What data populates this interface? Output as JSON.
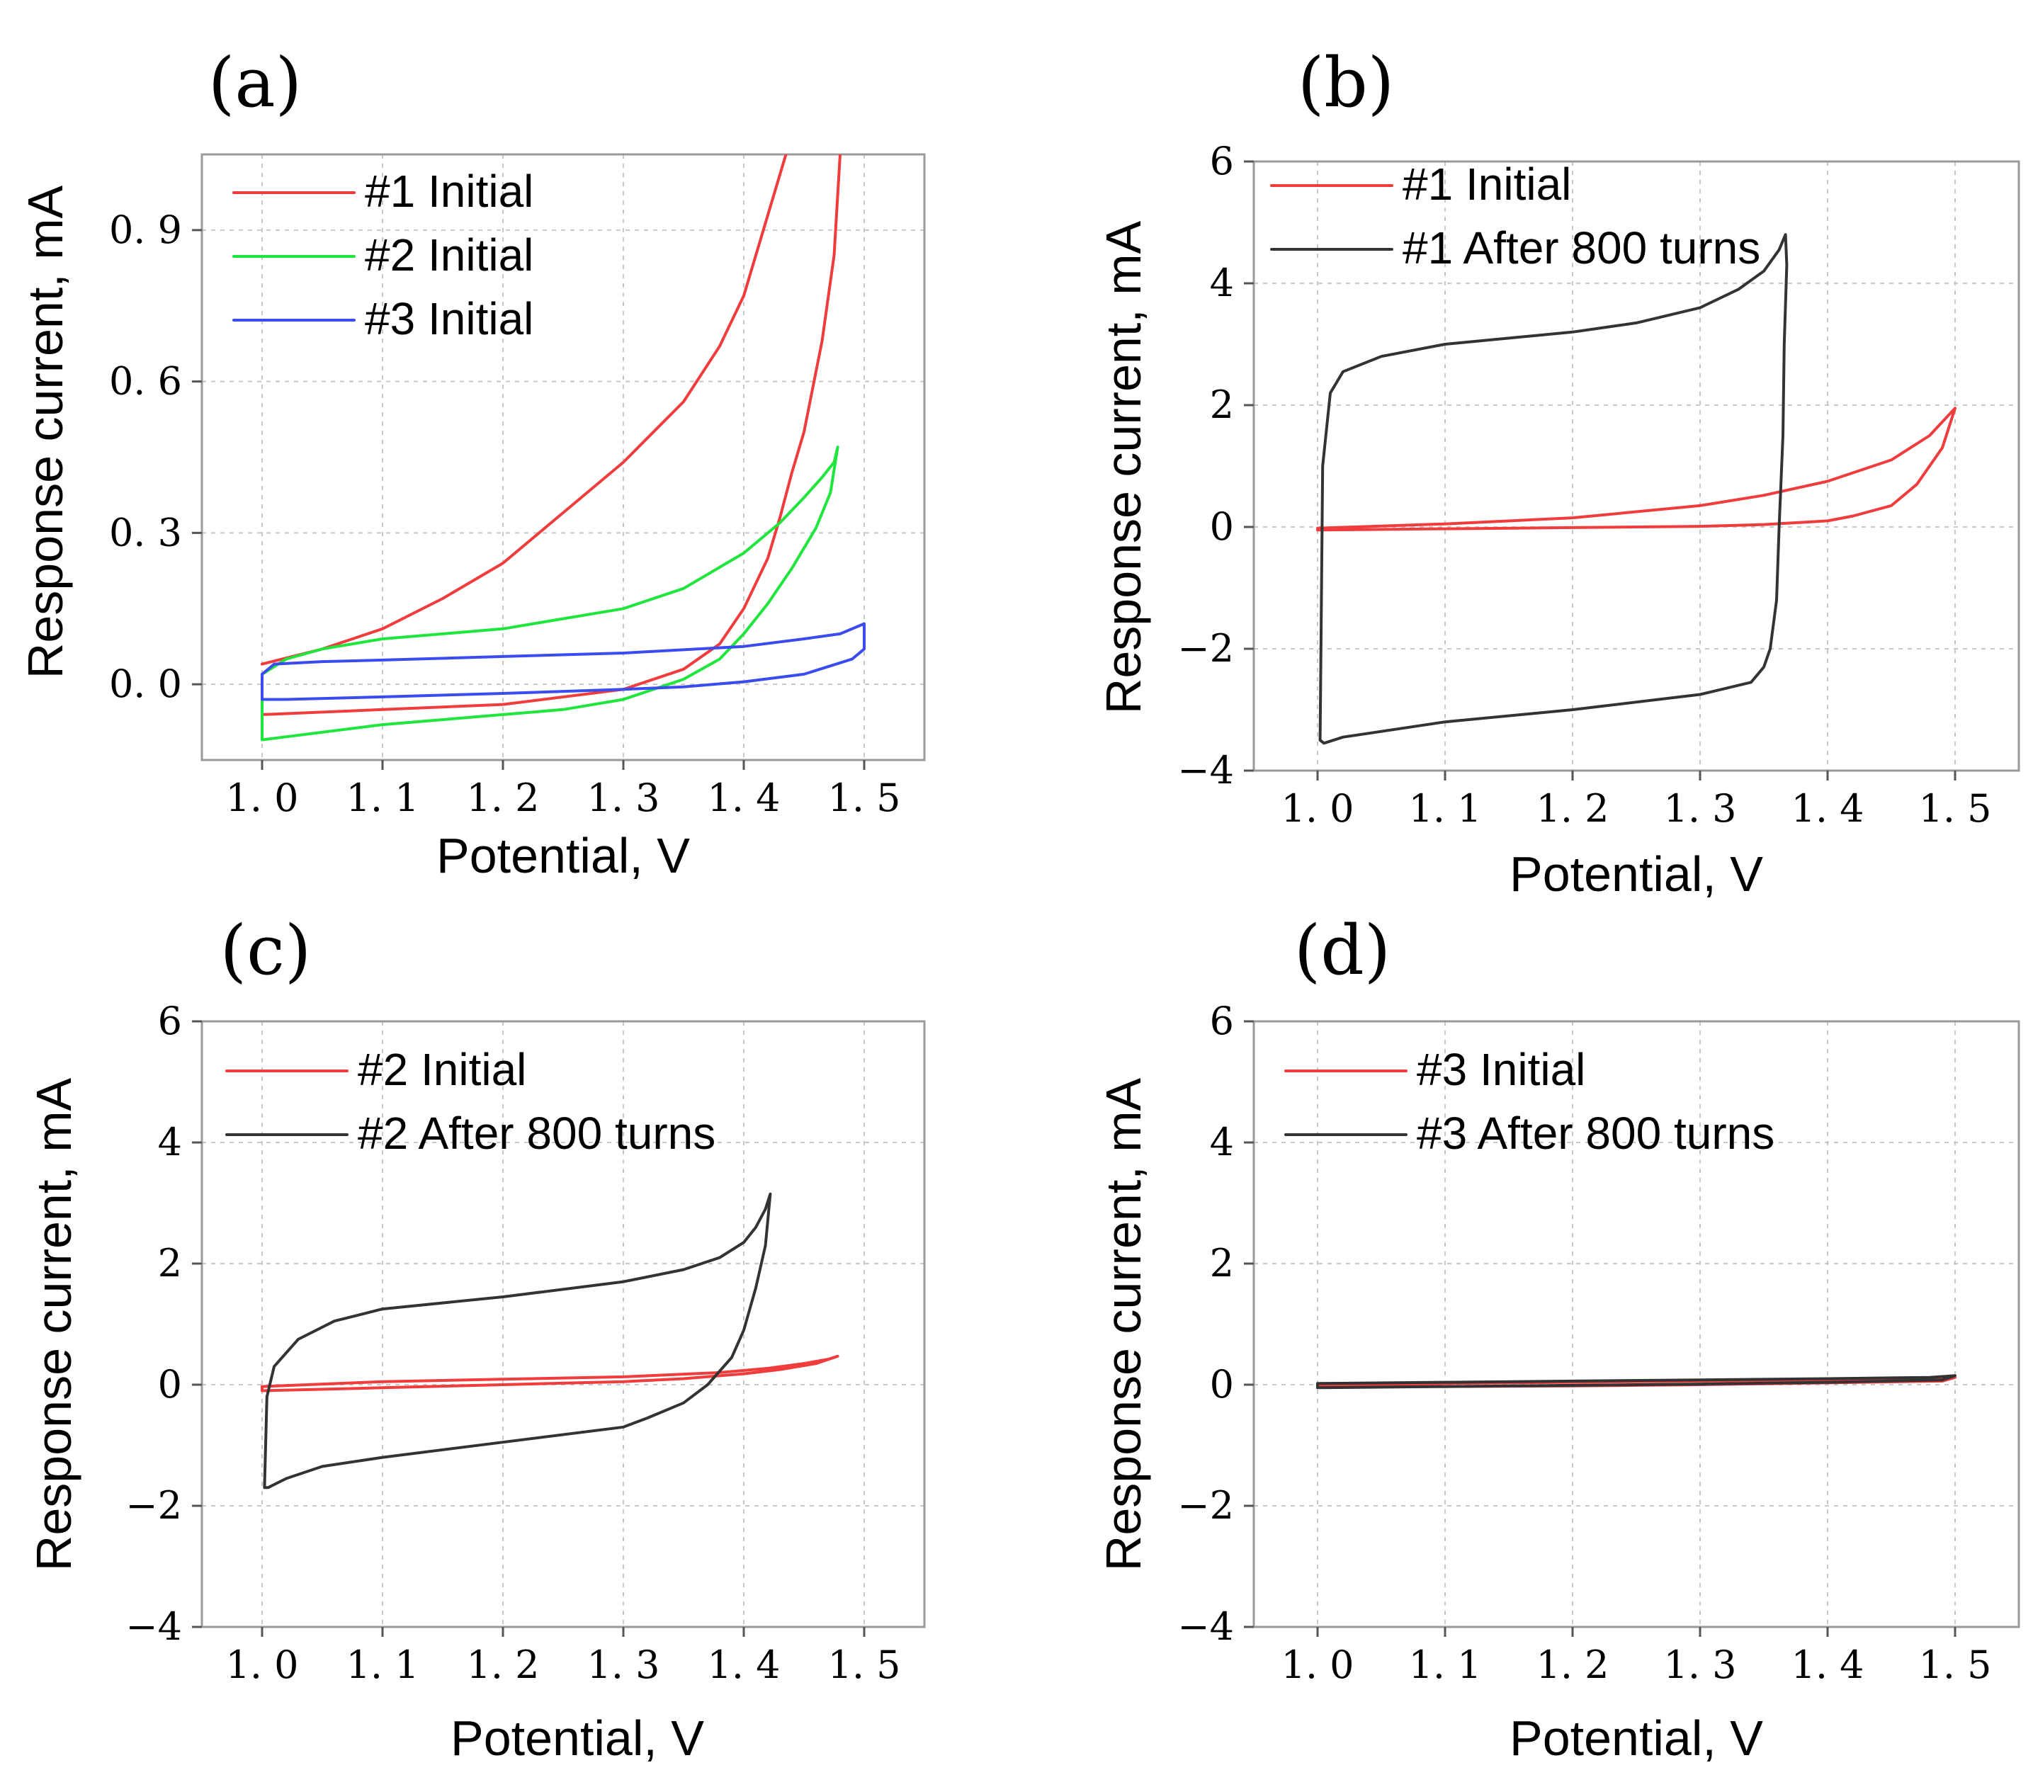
{
  "chart_data": [
    {
      "id": "a",
      "type": "line",
      "panel_label": "(a)",
      "xlabel": "Potential, V",
      "ylabel": "Response current, mA",
      "xlim": [
        0.95,
        1.55
      ],
      "ylim": [
        -0.15,
        1.05
      ],
      "xticks": [
        1.0,
        1.1,
        1.2,
        1.3,
        1.4,
        1.5
      ],
      "xtick_labels": [
        "1. 0",
        "1. 1",
        "1. 2",
        "1. 3",
        "1. 4",
        "1. 5"
      ],
      "yticks": [
        0.0,
        0.3,
        0.6,
        0.9
      ],
      "ytick_labels": [
        "0. 0",
        "0. 3",
        "0. 6",
        "0. 9"
      ],
      "grid": true,
      "legend_position": "top-left",
      "series": [
        {
          "name": "#1 Initial",
          "color": "#f03c3c",
          "x": [
            1.0,
            1.05,
            1.1,
            1.15,
            1.2,
            1.25,
            1.3,
            1.35,
            1.38,
            1.4,
            1.42,
            1.435,
            null,
            1.48,
            1.475,
            1.465,
            1.45,
            1.44,
            1.43,
            1.42,
            1.4,
            1.38,
            1.35,
            1.3,
            1.2,
            1.1,
            1.0
          ],
          "y": [
            0.04,
            0.07,
            0.11,
            0.17,
            0.24,
            0.34,
            0.44,
            0.56,
            0.67,
            0.77,
            0.93,
            1.05,
            null,
            1.05,
            0.85,
            0.68,
            0.5,
            0.42,
            0.33,
            0.25,
            0.15,
            0.08,
            0.03,
            -0.01,
            -0.04,
            -0.05,
            -0.06
          ]
        },
        {
          "name": "#2 Initial",
          "color": "#1ee63c",
          "x": [
            1.0,
            1.02,
            1.05,
            1.1,
            1.2,
            1.3,
            1.35,
            1.4,
            1.43,
            1.45,
            1.465,
            1.475,
            1.478,
            1.472,
            1.46,
            1.44,
            1.42,
            1.4,
            1.38,
            1.35,
            1.3,
            1.25,
            1.2,
            1.1,
            1.0,
            1.0
          ],
          "y": [
            0.02,
            0.05,
            0.07,
            0.09,
            0.11,
            0.15,
            0.19,
            0.26,
            0.32,
            0.37,
            0.41,
            0.44,
            0.47,
            0.38,
            0.31,
            0.23,
            0.16,
            0.1,
            0.05,
            0.01,
            -0.03,
            -0.05,
            -0.06,
            -0.08,
            -0.11,
            0.02
          ]
        },
        {
          "name": "#3 Initial",
          "color": "#3a4bf0",
          "x": [
            1.0,
            1.01,
            1.05,
            1.1,
            1.2,
            1.3,
            1.4,
            1.45,
            1.48,
            1.5,
            1.5,
            1.49,
            1.47,
            1.45,
            1.4,
            1.35,
            1.3,
            1.2,
            1.1,
            1.02,
            1.0,
            1.0
          ],
          "y": [
            0.02,
            0.04,
            0.045,
            0.048,
            0.055,
            0.062,
            0.075,
            0.09,
            0.1,
            0.12,
            0.07,
            0.05,
            0.035,
            0.02,
            0.005,
            -0.005,
            -0.01,
            -0.018,
            -0.025,
            -0.03,
            -0.03,
            0.02
          ]
        }
      ]
    },
    {
      "id": "b",
      "type": "line",
      "panel_label": "(b)",
      "xlabel": "Potential, V",
      "ylabel": "Response current, mA",
      "xlim": [
        0.95,
        1.55
      ],
      "ylim": [
        -4,
        6
      ],
      "xticks": [
        1.0,
        1.1,
        1.2,
        1.3,
        1.4,
        1.5
      ],
      "xtick_labels": [
        "1. 0",
        "1. 1",
        "1. 2",
        "1. 3",
        "1. 4",
        "1. 5"
      ],
      "yticks": [
        -4,
        -2,
        0,
        2,
        4,
        6
      ],
      "ytick_labels": [
        "−4",
        "−2",
        "0",
        "2",
        "4",
        "6"
      ],
      "grid": true,
      "legend_position": "top-left",
      "series": [
        {
          "name": "#1 Initial",
          "color": "#f03c3c",
          "x": [
            1.0,
            1.1,
            1.2,
            1.3,
            1.35,
            1.4,
            1.45,
            1.48,
            1.5,
            1.49,
            1.47,
            1.45,
            1.42,
            1.4,
            1.35,
            1.3,
            1.2,
            1.1,
            1.0
          ],
          "y": [
            -0.02,
            0.05,
            0.15,
            0.35,
            0.52,
            0.75,
            1.1,
            1.5,
            1.95,
            1.3,
            0.7,
            0.35,
            0.18,
            0.1,
            0.04,
            0.01,
            -0.01,
            -0.03,
            -0.05
          ]
        },
        {
          "name": "#1 After 800 turns",
          "color": "#333333",
          "x": [
            1.002,
            1.004,
            1.01,
            1.02,
            1.05,
            1.1,
            1.15,
            1.2,
            1.25,
            1.3,
            1.33,
            1.35,
            1.362,
            1.367,
            1.368,
            1.366,
            1.365,
            1.362,
            1.36,
            1.355,
            1.35,
            1.34,
            1.3,
            1.2,
            1.1,
            1.02,
            1.005,
            1.002
          ],
          "y": [
            -3.5,
            1.0,
            2.2,
            2.55,
            2.8,
            3.0,
            3.1,
            3.2,
            3.35,
            3.6,
            3.9,
            4.2,
            4.55,
            4.8,
            4.3,
            3.0,
            1.5,
            0.0,
            -1.2,
            -2.0,
            -2.3,
            -2.55,
            -2.75,
            -3.0,
            -3.2,
            -3.45,
            -3.55,
            -3.5
          ]
        }
      ]
    },
    {
      "id": "c",
      "type": "line",
      "panel_label": "(c)",
      "xlabel": "Potential, V",
      "ylabel": "Response current, mA",
      "xlim": [
        0.95,
        1.55
      ],
      "ylim": [
        -4,
        6
      ],
      "xticks": [
        1.0,
        1.1,
        1.2,
        1.3,
        1.4,
        1.5
      ],
      "xtick_labels": [
        "1. 0",
        "1. 1",
        "1. 2",
        "1. 3",
        "1. 4",
        "1. 5"
      ],
      "yticks": [
        -4,
        -2,
        0,
        2,
        4,
        6
      ],
      "ytick_labels": [
        "−4",
        "−2",
        "0",
        "2",
        "4",
        "6"
      ],
      "grid": true,
      "legend_position": "top-left",
      "series": [
        {
          "name": "#2 Initial",
          "color": "#f03c3c",
          "x": [
            1.0,
            1.1,
            1.2,
            1.3,
            1.38,
            1.42,
            1.45,
            1.47,
            1.478,
            1.46,
            1.43,
            1.4,
            1.35,
            1.3,
            1.2,
            1.1,
            1.0,
            1.0
          ],
          "y": [
            -0.03,
            0.05,
            0.09,
            0.13,
            0.2,
            0.27,
            0.35,
            0.42,
            0.47,
            0.35,
            0.25,
            0.18,
            0.1,
            0.05,
            0.0,
            -0.05,
            -0.1,
            -0.03
          ]
        },
        {
          "name": "#2 After 800 turns",
          "color": "#333333",
          "x": [
            1.002,
            1.004,
            1.01,
            1.03,
            1.06,
            1.1,
            1.2,
            1.3,
            1.35,
            1.38,
            1.4,
            1.41,
            1.418,
            1.422,
            1.418,
            1.41,
            1.4,
            1.39,
            1.37,
            1.35,
            1.32,
            1.3,
            1.2,
            1.1,
            1.05,
            1.02,
            1.005,
            1.002
          ],
          "y": [
            -1.7,
            -0.2,
            0.3,
            0.75,
            1.05,
            1.25,
            1.45,
            1.7,
            1.9,
            2.1,
            2.35,
            2.6,
            2.9,
            3.15,
            2.3,
            1.6,
            0.9,
            0.45,
            0.0,
            -0.3,
            -0.55,
            -0.7,
            -0.95,
            -1.2,
            -1.35,
            -1.55,
            -1.7,
            -1.7
          ]
        }
      ]
    },
    {
      "id": "d",
      "type": "line",
      "panel_label": "(d)",
      "xlabel": "Potential, V",
      "ylabel": "Response current, mA",
      "xlim": [
        0.95,
        1.55
      ],
      "ylim": [
        -4,
        6
      ],
      "xticks": [
        1.0,
        1.1,
        1.2,
        1.3,
        1.4,
        1.5
      ],
      "xtick_labels": [
        "1. 0",
        "1. 1",
        "1. 2",
        "1. 3",
        "1. 4",
        "1. 5"
      ],
      "yticks": [
        -4,
        -2,
        0,
        2,
        4,
        6
      ],
      "ytick_labels": [
        "−4",
        "−2",
        "0",
        "2",
        "4",
        "6"
      ],
      "grid": true,
      "legend_position": "top-left",
      "series": [
        {
          "name": "#3 Initial",
          "color": "#f03c3c",
          "x": [
            1.0,
            1.1,
            1.2,
            1.3,
            1.4,
            1.48,
            1.5,
            1.49,
            1.4,
            1.3,
            1.2,
            1.1,
            1.0,
            1.0
          ],
          "y": [
            0.0,
            0.02,
            0.04,
            0.06,
            0.08,
            0.1,
            0.12,
            0.06,
            0.03,
            0.0,
            -0.02,
            -0.03,
            -0.04,
            0.0
          ]
        },
        {
          "name": "#3 After 800 turns",
          "color": "#333333",
          "x": [
            1.0,
            1.1,
            1.2,
            1.3,
            1.4,
            1.48,
            1.5,
            1.49,
            1.4,
            1.3,
            1.2,
            1.1,
            1.0,
            1.0
          ],
          "y": [
            0.02,
            0.04,
            0.06,
            0.08,
            0.1,
            0.12,
            0.15,
            0.08,
            0.04,
            0.01,
            -0.01,
            -0.03,
            -0.05,
            0.02
          ]
        }
      ]
    }
  ]
}
